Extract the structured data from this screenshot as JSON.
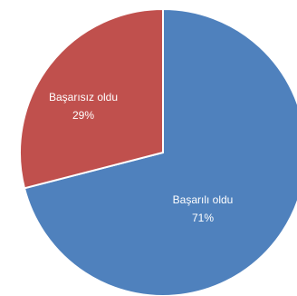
{
  "chart_data": {
    "type": "pie",
    "slices": [
      {
        "label": "Başarılı oldu",
        "value": 71,
        "value_label": "71%",
        "color": "#4f81bd"
      },
      {
        "label": "Başarısız oldu",
        "value": 29,
        "value_label": "29%",
        "color": "#c0504d"
      }
    ],
    "start": "12 o'clock",
    "direction": "clockwise",
    "slice_border_color": "#ffffff",
    "legend": "none"
  }
}
